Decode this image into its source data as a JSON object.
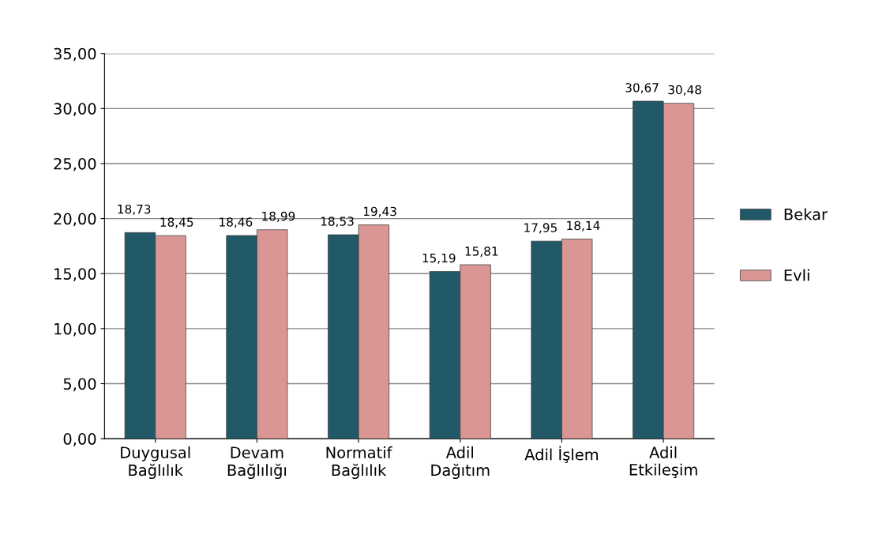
{
  "chart_data": {
    "type": "bar",
    "categories": [
      "Duygusal\nBağlılık",
      "Devam\nBağlılığı",
      "Normatif\nBağlılık",
      "Adil\nDağıtım",
      "Adil İşlem",
      "Adil\nEtkileşim"
    ],
    "series": [
      {
        "name": "Bekar",
        "color": "#215968",
        "values": [
          18.73,
          18.46,
          18.53,
          15.19,
          17.95,
          30.67
        ],
        "value_labels": [
          "18,73",
          "18,46",
          "18,53",
          "15,19",
          "17,95",
          "30,67"
        ]
      },
      {
        "name": "Evli",
        "color": "#d99694",
        "values": [
          18.45,
          18.99,
          19.43,
          15.81,
          18.14,
          30.48
        ],
        "value_labels": [
          "18,45",
          "18,99",
          "19,43",
          "15,81",
          "18,14",
          "30,48"
        ]
      }
    ],
    "ylim": [
      0,
      35
    ],
    "yticks": [
      {
        "value": 0,
        "label": "0,00"
      },
      {
        "value": 5,
        "label": "5,00"
      },
      {
        "value": 10,
        "label": "10,00"
      },
      {
        "value": 15,
        "label": "15,00"
      },
      {
        "value": 20,
        "label": "20,00"
      },
      {
        "value": 25,
        "label": "25,00"
      },
      {
        "value": 30,
        "label": "30,00"
      },
      {
        "value": 35,
        "label": "35,00"
      }
    ],
    "grid": "y",
    "legend": "right"
  }
}
